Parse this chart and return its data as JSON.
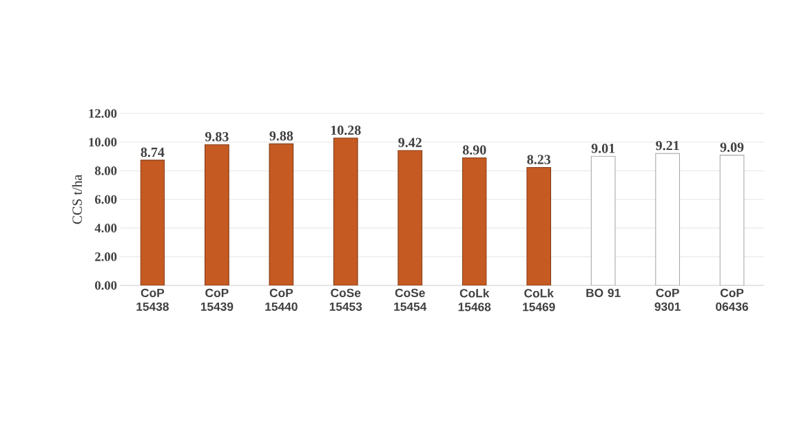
{
  "chart_data": {
    "type": "bar",
    "ylabel": "CCS t/ha",
    "categories": [
      "CoP 15438",
      "CoP 15439",
      "CoP 15440",
      "CoSe 15453",
      "CoSe 15454",
      "CoLk 15468",
      "CoLk 15469",
      "BO 91",
      "CoP 9301",
      "CoP 06436"
    ],
    "values": [
      8.74,
      9.83,
      9.88,
      10.28,
      9.42,
      8.9,
      8.23,
      9.01,
      9.21,
      9.09
    ],
    "value_labels": [
      "8.74",
      "9.83",
      "9.88",
      "10.28",
      "9.42",
      "8.90",
      "8.23",
      "9.01",
      "9.21",
      "9.09"
    ],
    "colors": [
      "#c55a22",
      "#c55a22",
      "#c55a22",
      "#c55a22",
      "#c55a22",
      "#c55a22",
      "#c55a22",
      "#ffffff",
      "#ffffff",
      "#ffffff"
    ],
    "ylim": [
      0,
      12
    ],
    "yticks": [
      {
        "value": 0,
        "label": "0.00"
      },
      {
        "value": 2,
        "label": "2.00"
      },
      {
        "value": 4,
        "label": "4.00"
      },
      {
        "value": 6,
        "label": "6.00"
      },
      {
        "value": 8,
        "label": "8.00"
      },
      {
        "value": 10,
        "label": "10.00"
      },
      {
        "value": 12,
        "label": "12.00"
      }
    ],
    "grid": "y"
  }
}
